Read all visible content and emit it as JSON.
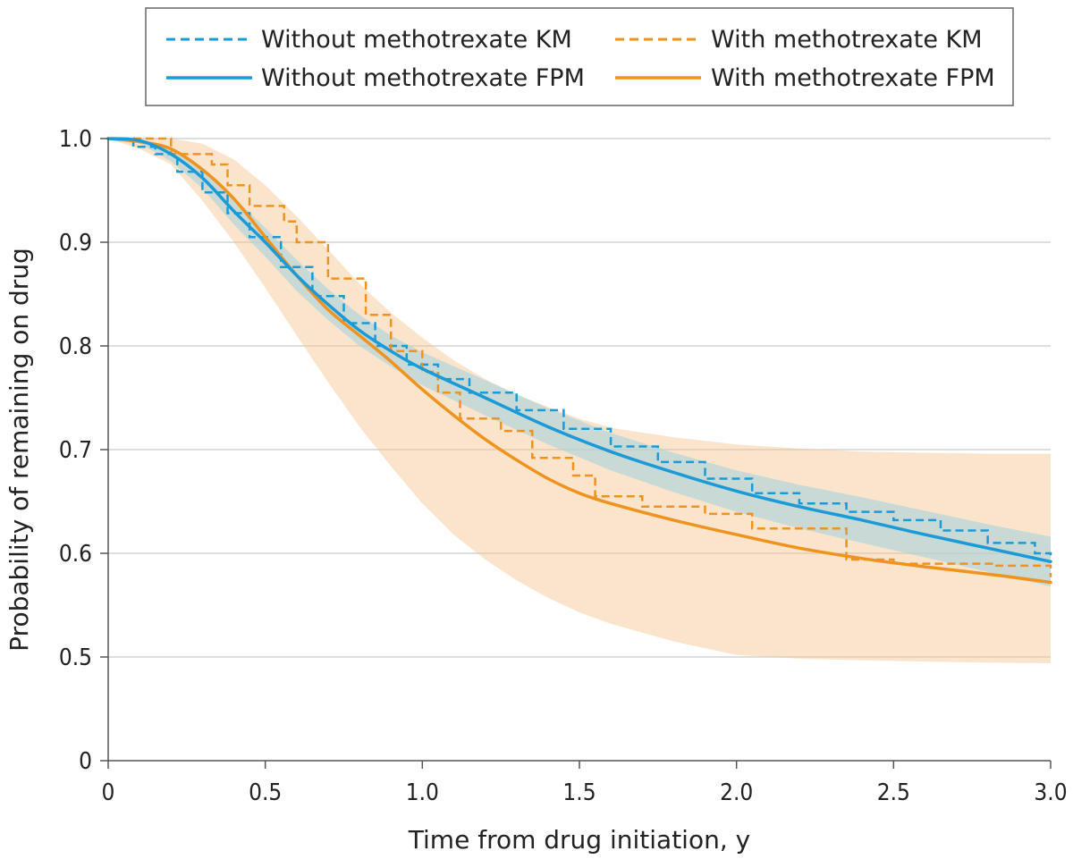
{
  "chart_data": {
    "type": "line",
    "title": "",
    "xlabel": "Time from drug initiation, y",
    "ylabel": "Probability of remaining on drug",
    "xlim": [
      0,
      3.0
    ],
    "ylim": [
      0,
      1.0
    ],
    "x_ticks": [
      0,
      0.5,
      1.0,
      1.5,
      2.0,
      2.5,
      3.0
    ],
    "x_tick_labels": [
      "0",
      "0.5",
      "1.0",
      "1.5",
      "2.0",
      "2.5",
      "3.0"
    ],
    "y_ticks": [
      0,
      0.5,
      0.6,
      0.7,
      0.8,
      0.9,
      1.0
    ],
    "y_tick_labels": [
      "0",
      "0.5",
      "0.6",
      "0.7",
      "0.8",
      "0.9",
      "1.0"
    ],
    "axis_break_between": [
      0,
      0.5
    ],
    "grid": "horizontal",
    "legend_position": "top",
    "series": [
      {
        "name": "Without methotrexate KM",
        "style": "dashed-step",
        "color": "#1a9ad6",
        "x": [
          0,
          0.08,
          0.15,
          0.22,
          0.3,
          0.38,
          0.45,
          0.55,
          0.65,
          0.75,
          0.85,
          0.95,
          1.05,
          1.15,
          1.3,
          1.45,
          1.6,
          1.75,
          1.9,
          2.05,
          2.2,
          2.35,
          2.5,
          2.65,
          2.8,
          2.95,
          3.0
        ],
        "y": [
          1.0,
          0.992,
          0.985,
          0.968,
          0.948,
          0.928,
          0.905,
          0.876,
          0.848,
          0.822,
          0.8,
          0.782,
          0.768,
          0.755,
          0.738,
          0.72,
          0.703,
          0.688,
          0.672,
          0.658,
          0.648,
          0.64,
          0.632,
          0.622,
          0.61,
          0.6,
          0.598
        ]
      },
      {
        "name": "With methotrexate KM",
        "style": "dashed-step",
        "color": "#f0921e",
        "x": [
          0,
          0.2,
          0.33,
          0.38,
          0.45,
          0.56,
          0.6,
          0.7,
          0.82,
          0.9,
          1.0,
          1.05,
          1.12,
          1.25,
          1.35,
          1.48,
          1.55,
          1.7,
          1.9,
          2.05,
          2.35,
          2.5,
          2.82,
          3.0
        ],
        "y": [
          1.0,
          0.985,
          0.975,
          0.955,
          0.935,
          0.92,
          0.9,
          0.865,
          0.83,
          0.795,
          0.775,
          0.755,
          0.73,
          0.718,
          0.692,
          0.675,
          0.655,
          0.645,
          0.638,
          0.624,
          0.594,
          0.59,
          0.588,
          0.577
        ]
      },
      {
        "name": "Without methotrexate FPM",
        "style": "solid",
        "color": "#1a9ad6",
        "x": [
          0,
          0.1,
          0.2,
          0.3,
          0.4,
          0.5,
          0.6,
          0.7,
          0.8,
          0.9,
          1.0,
          1.2,
          1.4,
          1.6,
          1.8,
          2.0,
          2.2,
          2.4,
          2.6,
          2.8,
          3.0
        ],
        "y": [
          1.0,
          0.998,
          0.985,
          0.962,
          0.93,
          0.9,
          0.868,
          0.84,
          0.815,
          0.795,
          0.778,
          0.75,
          0.722,
          0.698,
          0.678,
          0.66,
          0.645,
          0.632,
          0.618,
          0.605,
          0.592
        ],
        "ci_lower": [
          1.0,
          0.995,
          0.978,
          0.952,
          0.917,
          0.886,
          0.853,
          0.825,
          0.8,
          0.78,
          0.762,
          0.733,
          0.705,
          0.68,
          0.659,
          0.64,
          0.624,
          0.61,
          0.596,
          0.582,
          0.568
        ],
        "ci_upper": [
          1.0,
          1.0,
          0.992,
          0.972,
          0.943,
          0.914,
          0.883,
          0.855,
          0.83,
          0.81,
          0.794,
          0.767,
          0.74,
          0.716,
          0.697,
          0.68,
          0.666,
          0.654,
          0.641,
          0.628,
          0.616
        ]
      },
      {
        "name": "With methotrexate FPM",
        "style": "solid",
        "color": "#f0921e",
        "x": [
          0,
          0.1,
          0.2,
          0.3,
          0.4,
          0.5,
          0.6,
          0.7,
          0.8,
          0.9,
          1.0,
          1.1,
          1.2,
          1.3,
          1.4,
          1.5,
          1.6,
          1.8,
          2.0,
          2.2,
          2.4,
          2.6,
          2.8,
          3.0
        ],
        "y": [
          1.0,
          0.997,
          0.99,
          0.97,
          0.942,
          0.905,
          0.868,
          0.835,
          0.81,
          0.785,
          0.758,
          0.733,
          0.71,
          0.69,
          0.672,
          0.658,
          0.648,
          0.632,
          0.618,
          0.605,
          0.595,
          0.587,
          0.58,
          0.572
        ],
        "ci_lower": [
          1.0,
          0.99,
          0.975,
          0.94,
          0.9,
          0.856,
          0.81,
          0.765,
          0.722,
          0.684,
          0.648,
          0.618,
          0.594,
          0.574,
          0.557,
          0.543,
          0.532,
          0.515,
          0.502,
          0.492,
          0.484,
          0.478,
          0.473,
          0.47
        ],
        "ci_upper": [
          1.0,
          1.0,
          1.0,
          0.995,
          0.98,
          0.955,
          0.925,
          0.893,
          0.86,
          0.832,
          0.808,
          0.786,
          0.768,
          0.753,
          0.741,
          0.73,
          0.721,
          0.712,
          0.705,
          0.701,
          0.698,
          0.697,
          0.696,
          0.696
        ]
      }
    ]
  }
}
